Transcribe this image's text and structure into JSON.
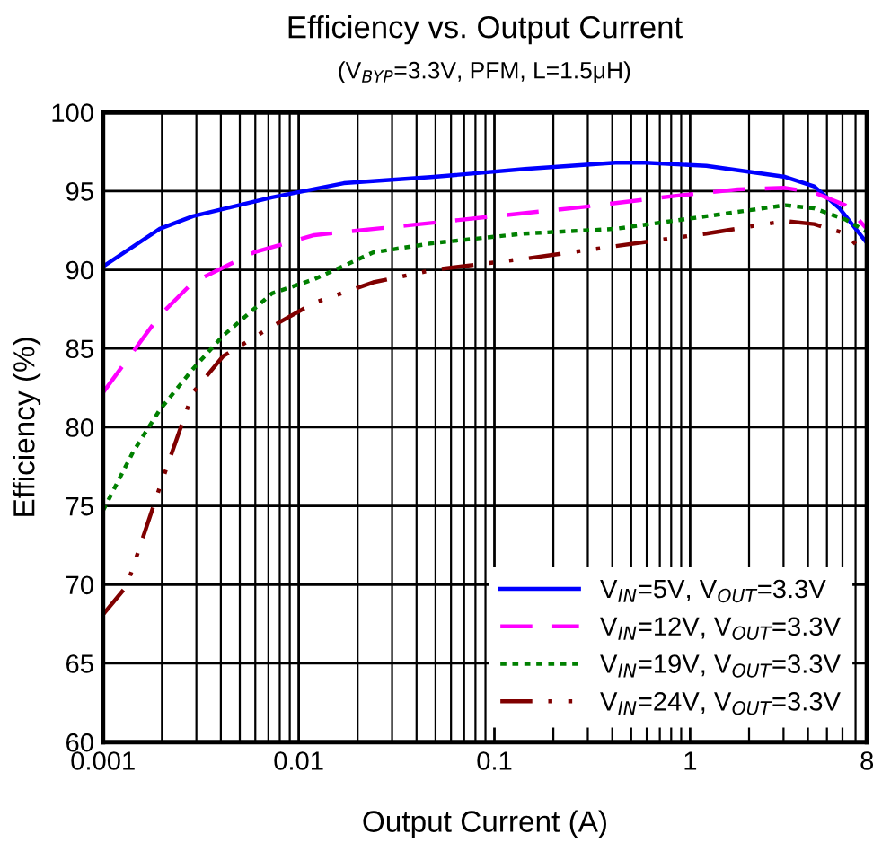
{
  "chart_data": {
    "type": "line",
    "title": "Efficiency vs. Output Current",
    "subtitle": "(V$_{BYP}$=3.3V, PFM, L=1.5μH)",
    "xlabel": "Output Current (A)",
    "ylabel": "Efficiency (%)",
    "log": "x",
    "xlim": [
      0.001,
      8
    ],
    "xticks": [
      0.001,
      0.01,
      0.1,
      1,
      8
    ],
    "ylim": [
      60,
      100
    ],
    "yticks": [
      60,
      65,
      70,
      75,
      80,
      85,
      90,
      95,
      100
    ],
    "grid": true,
    "legend": "bottom right",
    "series": [
      {
        "name": "V$_{IN}$=5V, V$_{OUT}$=3.3V",
        "color": "#0000ff",
        "line_style": "solid",
        "x": [
          0.001,
          0.00195,
          0.00288,
          0.0073,
          0.017,
          0.049,
          0.143,
          0.416,
          0.59,
          1.21,
          3.06,
          4.3,
          5.8,
          8
        ],
        "values": [
          90.2,
          92.6,
          93.4,
          94.6,
          95.5,
          95.9,
          96.4,
          96.8,
          96.8,
          96.6,
          95.9,
          95.3,
          93.9,
          91.7
        ]
      },
      {
        "name": "V$_{IN}$=12V, V$_{OUT}$=3.3V",
        "color": "#ff00ff",
        "line_style": "dashed",
        "x": [
          0.001,
          0.00195,
          0.00288,
          0.0059,
          0.012,
          0.035,
          0.1,
          0.29,
          0.85,
          1.75,
          3.06,
          4.3,
          6.2,
          8
        ],
        "values": [
          82.2,
          87.1,
          89.2,
          91.1,
          92.2,
          92.8,
          93.4,
          94.0,
          94.7,
          95.1,
          95.2,
          94.9,
          94.1,
          92.6
        ]
      },
      {
        "name": "V$_{IN}$=19V, V$_{OUT}$=3.3V",
        "color": "#008000",
        "line_style": "dotted",
        "x": [
          0.001,
          0.00142,
          0.00195,
          0.00288,
          0.0041,
          0.0073,
          0.012,
          0.024,
          0.049,
          0.143,
          0.416,
          1.21,
          3.06,
          4.3,
          6.2,
          8
        ],
        "values": [
          74.7,
          78.4,
          81.1,
          83.7,
          85.8,
          88.5,
          89.4,
          91.1,
          91.7,
          92.3,
          92.6,
          93.4,
          94.1,
          93.9,
          93.2,
          92.4
        ]
      },
      {
        "name": "V$_{IN}$=24V, V$_{OUT}$=3.3V",
        "color": "#800000",
        "line_style": "dashdotdot",
        "x": [
          0.001,
          0.00132,
          0.00194,
          0.00288,
          0.0041,
          0.0073,
          0.012,
          0.024,
          0.049,
          0.143,
          0.416,
          1.21,
          3.06,
          4.3,
          6.2,
          8
        ],
        "values": [
          68.1,
          69.9,
          76.1,
          82.2,
          84.5,
          86.4,
          87.9,
          89.2,
          90.0,
          90.7,
          91.5,
          92.3,
          93.1,
          92.9,
          92.3,
          90.9
        ]
      }
    ]
  }
}
